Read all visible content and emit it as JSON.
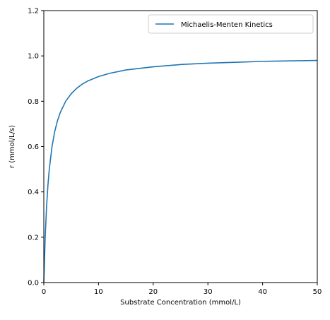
{
  "chart_data": {
    "type": "line",
    "title": "",
    "xlabel": "Substrate Concentration (mmol/L)",
    "ylabel": "r (mmol/L/s)",
    "xlim": [
      0,
      50
    ],
    "ylim": [
      0,
      1.2
    ],
    "xticks": [
      0,
      10,
      20,
      30,
      40,
      50
    ],
    "xtick_labels": [
      "0",
      "10",
      "20",
      "30",
      "40",
      "50"
    ],
    "yticks": [
      0,
      0.2,
      0.4,
      0.6,
      0.8,
      1.0,
      1.2
    ],
    "ytick_labels": [
      "0.0",
      "0.2",
      "0.4",
      "0.6",
      "0.8",
      "1.0",
      "1.2"
    ],
    "grid": false,
    "legend_position": "top-right",
    "series": [
      {
        "name": "Michaelis-Menten Kinetics",
        "color": "#1f77b4",
        "x": [
          0,
          0.25,
          0.5,
          0.75,
          1,
          1.5,
          2,
          2.5,
          3,
          4,
          5,
          6,
          7,
          8,
          10,
          12,
          15,
          20,
          25,
          30,
          35,
          40,
          45,
          50
        ],
        "y": [
          0,
          0.2,
          0.333,
          0.429,
          0.5,
          0.6,
          0.667,
          0.714,
          0.75,
          0.8,
          0.833,
          0.857,
          0.875,
          0.889,
          0.909,
          0.923,
          0.938,
          0.952,
          0.962,
          0.968,
          0.972,
          0.976,
          0.978,
          0.98
        ]
      }
    ]
  }
}
